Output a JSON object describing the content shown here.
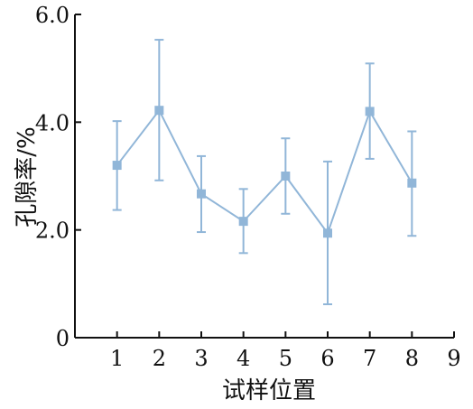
{
  "chart_data": {
    "type": "line",
    "xlabel": "试样位置",
    "ylabel": "孔隙率/%",
    "x": [
      1,
      2,
      3,
      4,
      5,
      6,
      7,
      8
    ],
    "y_ticks": [
      "0",
      "2.0",
      "4.0",
      "6.0"
    ],
    "x_ticks": [
      "1",
      "2",
      "3",
      "4",
      "5",
      "6",
      "7",
      "8",
      "9"
    ],
    "xlim": [
      0,
      9
    ],
    "ylim": [
      0,
      6.0
    ],
    "grid": false,
    "series": [
      {
        "values": [
          3.2,
          4.22,
          2.67,
          2.16,
          3.0,
          1.94,
          4.2,
          2.87
        ],
        "error_low": [
          2.37,
          2.92,
          1.96,
          1.57,
          2.3,
          0.62,
          3.32,
          1.89
        ],
        "error_high": [
          4.02,
          5.53,
          3.37,
          2.76,
          3.7,
          3.27,
          5.09,
          3.83
        ],
        "color": "#91b6d8"
      }
    ]
  }
}
